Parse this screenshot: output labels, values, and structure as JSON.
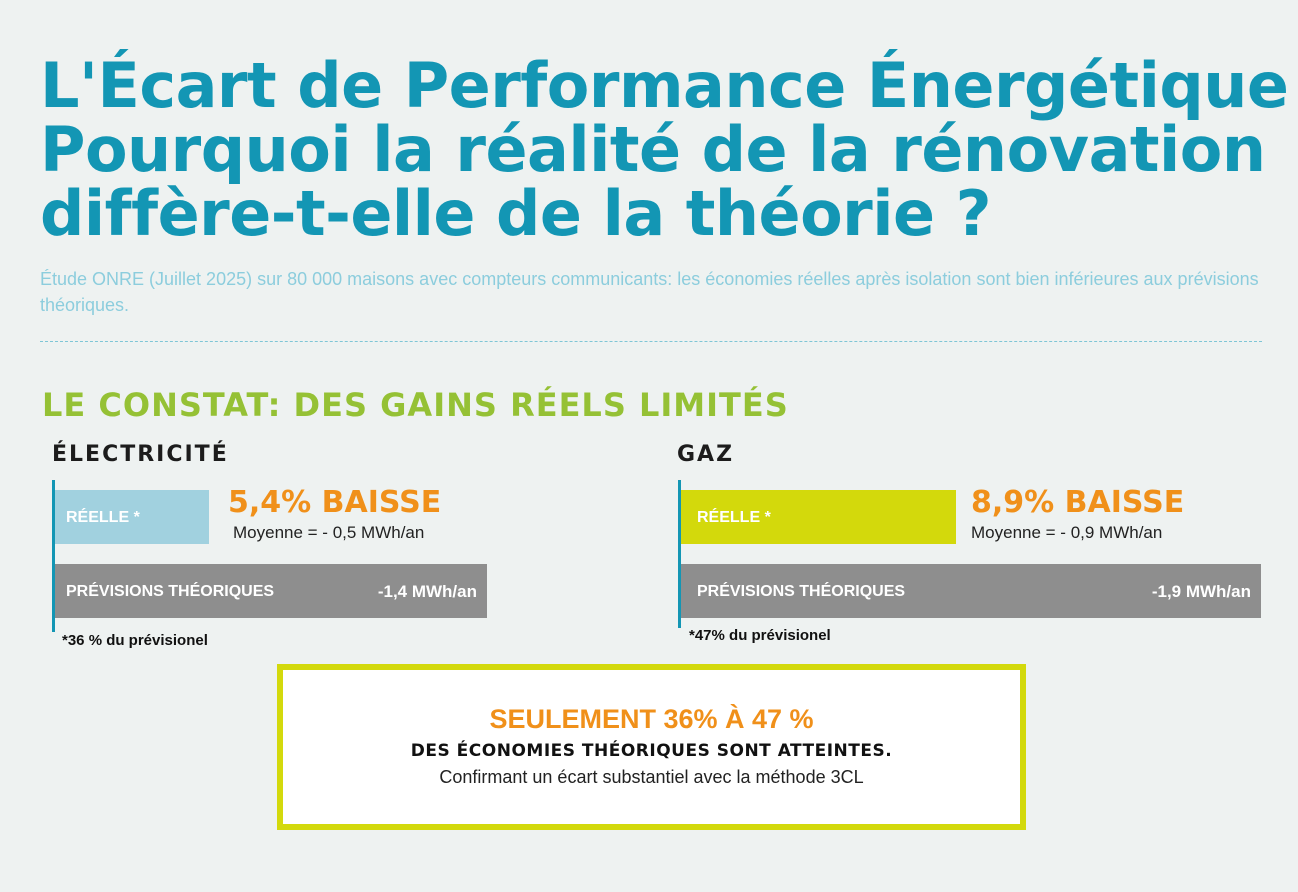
{
  "header": {
    "title_lines": [
      "L'Écart de Performance Énergétique :",
      "Pourquoi la réalité de la rénovation",
      "diffère-t-elle de la théorie ?"
    ],
    "subtitle": "Étude ONRE (Juillet 2025) sur 80 000 maisons avec compteurs communicants: les économies réelles après isolation sont bien inférieures aux prévisions théoriques."
  },
  "section": {
    "title": "LE CONSTAT: DES GAINS RÉELS LIMITÉS"
  },
  "colors": {
    "title": "#1396b4",
    "section": "#95c135",
    "accent_orange": "#f0901a",
    "electricite_reelle": "#a1d1df",
    "gaz_reelle": "#d3d90c",
    "previsions": "#8e8e8e"
  },
  "chart_data": [
    {
      "type": "bar",
      "title": "ÉLECTRICITÉ",
      "categories": [
        "RÉELLE *",
        "PRÉVISIONS THÉORIQUES"
      ],
      "values": [
        -0.5,
        -1.4
      ],
      "value_labels": [
        "",
        "-1,4 MWh/an"
      ],
      "percent_label": "5,4% BAISSE",
      "average_label": "Moyenne = - 0,5 MWh/an",
      "footnote": "*36 % du prévisionel",
      "colors": [
        "#a1d1df",
        "#8e8e8e"
      ]
    },
    {
      "type": "bar",
      "title": "GAZ",
      "categories": [
        "RÉELLE *",
        "PRÉVISIONS THÉORIQUES"
      ],
      "values": [
        -0.9,
        -1.9
      ],
      "value_labels": [
        "",
        "-1,9 MWh/an"
      ],
      "percent_label": "8,9% BAISSE",
      "average_label": "Moyenne = - 0,9 MWh/an",
      "footnote": "*47% du prévisionel",
      "colors": [
        "#d3d90c",
        "#8e8e8e"
      ]
    }
  ],
  "callout": {
    "headline": "SEULEMENT 36% À 47 %",
    "subheadline": "DES ÉCONOMIES THÉORIQUES SONT ATTEINTES.",
    "note": "Confirmant un écart substantiel avec la méthode 3CL"
  }
}
